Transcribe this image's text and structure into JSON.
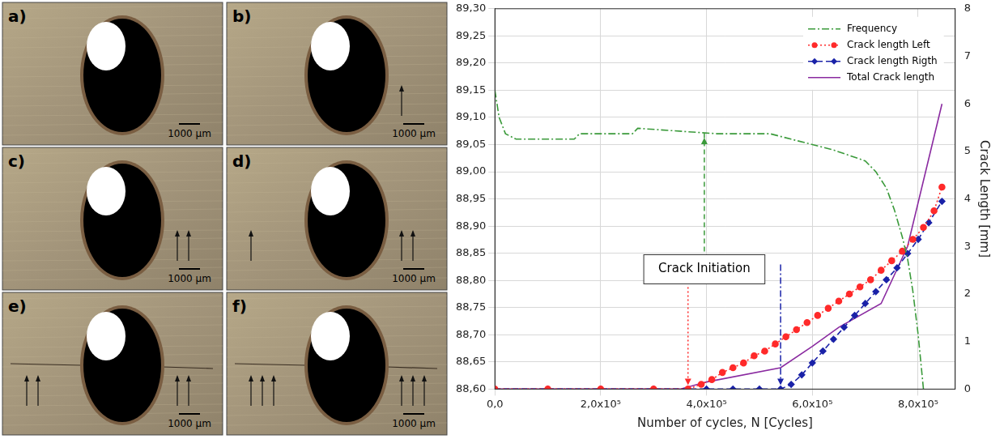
{
  "photos": [
    {
      "label": "a)",
      "scale_bar": "1000 µm"
    },
    {
      "label": "b)",
      "scale_bar": "1000 µm"
    },
    {
      "label": "c)",
      "scale_bar": "1000 µm"
    },
    {
      "label": "d)",
      "scale_bar": "1000 µm"
    },
    {
      "label": "e)",
      "scale_bar": "1000 µm"
    },
    {
      "label": "f)",
      "scale_bar": "1000 µm"
    }
  ],
  "chart_data": {
    "type": "line",
    "annotation": "Crack Initiation",
    "xlabel": "Number of cycles, N [Cycles]",
    "y2label": "Crack Length [mm]",
    "xlim": [
      0,
      870000
    ],
    "xticks": [
      {
        "value": 0,
        "label": "0,0"
      },
      {
        "value": 200000,
        "label": "2,0x10⁵"
      },
      {
        "value": 400000,
        "label": "4,0x10⁵"
      },
      {
        "value": 600000,
        "label": "6,0x10⁵"
      },
      {
        "value": 800000,
        "label": "8,0x10⁵"
      }
    ],
    "ylim": [
      88.6,
      89.3
    ],
    "yticks": [
      {
        "value": 88.6,
        "label": "88,60"
      },
      {
        "value": 88.65,
        "label": "88,65"
      },
      {
        "value": 88.7,
        "label": "88,70"
      },
      {
        "value": 88.75,
        "label": "88,75"
      },
      {
        "value": 88.8,
        "label": "88,80"
      },
      {
        "value": 88.85,
        "label": "88,85"
      },
      {
        "value": 88.9,
        "label": "88,90"
      },
      {
        "value": 88.95,
        "label": "88,95"
      },
      {
        "value": 89.0,
        "label": "89,00"
      },
      {
        "value": 89.05,
        "label": "89,05"
      },
      {
        "value": 89.1,
        "label": "89,10"
      },
      {
        "value": 89.15,
        "label": "89,15"
      },
      {
        "value": 89.2,
        "label": "89,20"
      },
      {
        "value": 89.25,
        "label": "89,25"
      },
      {
        "value": 89.3,
        "label": "89,30"
      }
    ],
    "y2lim": [
      0,
      8
    ],
    "y2ticks": [
      0,
      1,
      2,
      3,
      4,
      5,
      6,
      7,
      8
    ],
    "grid": true,
    "legend": "upper right",
    "series": [
      {
        "name": "Frequency",
        "color": "#3a9a3a",
        "line_style": "dashdot",
        "marker": "none",
        "x": [
          0,
          8000,
          20000,
          40000,
          150000,
          160000,
          260000,
          270000,
          420000,
          520000,
          560000,
          600000,
          640000,
          670000,
          700000,
          720000,
          740000,
          755000,
          770000,
          780000,
          790000,
          800000,
          810000
        ],
        "values": [
          89.15,
          89.1,
          89.07,
          89.06,
          89.06,
          89.07,
          89.07,
          89.08,
          89.07,
          89.07,
          89.06,
          89.05,
          89.04,
          89.03,
          89.02,
          89.0,
          88.97,
          88.93,
          88.88,
          88.84,
          88.78,
          88.7,
          88.6
        ]
      },
      {
        "name": "Crack length Left",
        "color": "#ff2a2a",
        "line_style": "dotted",
        "marker": "circle",
        "axis": "y2",
        "x": [
          0,
          100000,
          200000,
          300000,
          365000,
          390000,
          410000,
          430000,
          450000,
          470000,
          490000,
          510000,
          530000,
          550000,
          570000,
          590000,
          610000,
          630000,
          650000,
          670000,
          690000,
          710000,
          730000,
          750000,
          770000,
          790000,
          810000,
          830000,
          845000
        ],
        "values": [
          0,
          0,
          0,
          0,
          0,
          0.1,
          0.2,
          0.35,
          0.45,
          0.55,
          0.7,
          0.8,
          0.95,
          1.1,
          1.25,
          1.4,
          1.55,
          1.7,
          1.85,
          2.0,
          2.15,
          2.3,
          2.5,
          2.7,
          2.9,
          3.15,
          3.4,
          3.75,
          4.25
        ]
      },
      {
        "name": "Crack length Rigth",
        "color": "#1a22a8",
        "line_style": "dashed",
        "marker": "diamond",
        "axis": "y2",
        "x": [
          0,
          100000,
          200000,
          300000,
          400000,
          450000,
          500000,
          540000,
          560000,
          580000,
          600000,
          620000,
          640000,
          660000,
          680000,
          700000,
          720000,
          740000,
          760000,
          780000,
          800000,
          820000,
          845000
        ],
        "values": [
          0,
          0,
          0,
          0,
          0,
          0,
          0,
          0,
          0.1,
          0.3,
          0.55,
          0.8,
          1.05,
          1.3,
          1.55,
          1.8,
          2.05,
          2.3,
          2.55,
          2.85,
          3.15,
          3.5,
          3.95
        ]
      },
      {
        "name": "Total Crack length",
        "color": "#8a2aa0",
        "line_style": "solid",
        "marker": "none",
        "axis": "y2",
        "x": [
          0,
          350000,
          400000,
          540000,
          600000,
          650000,
          730000,
          780000,
          845000
        ],
        "values": [
          0,
          0,
          0.15,
          0.45,
          0.9,
          1.3,
          1.8,
          3.0,
          6.0
        ]
      }
    ]
  }
}
